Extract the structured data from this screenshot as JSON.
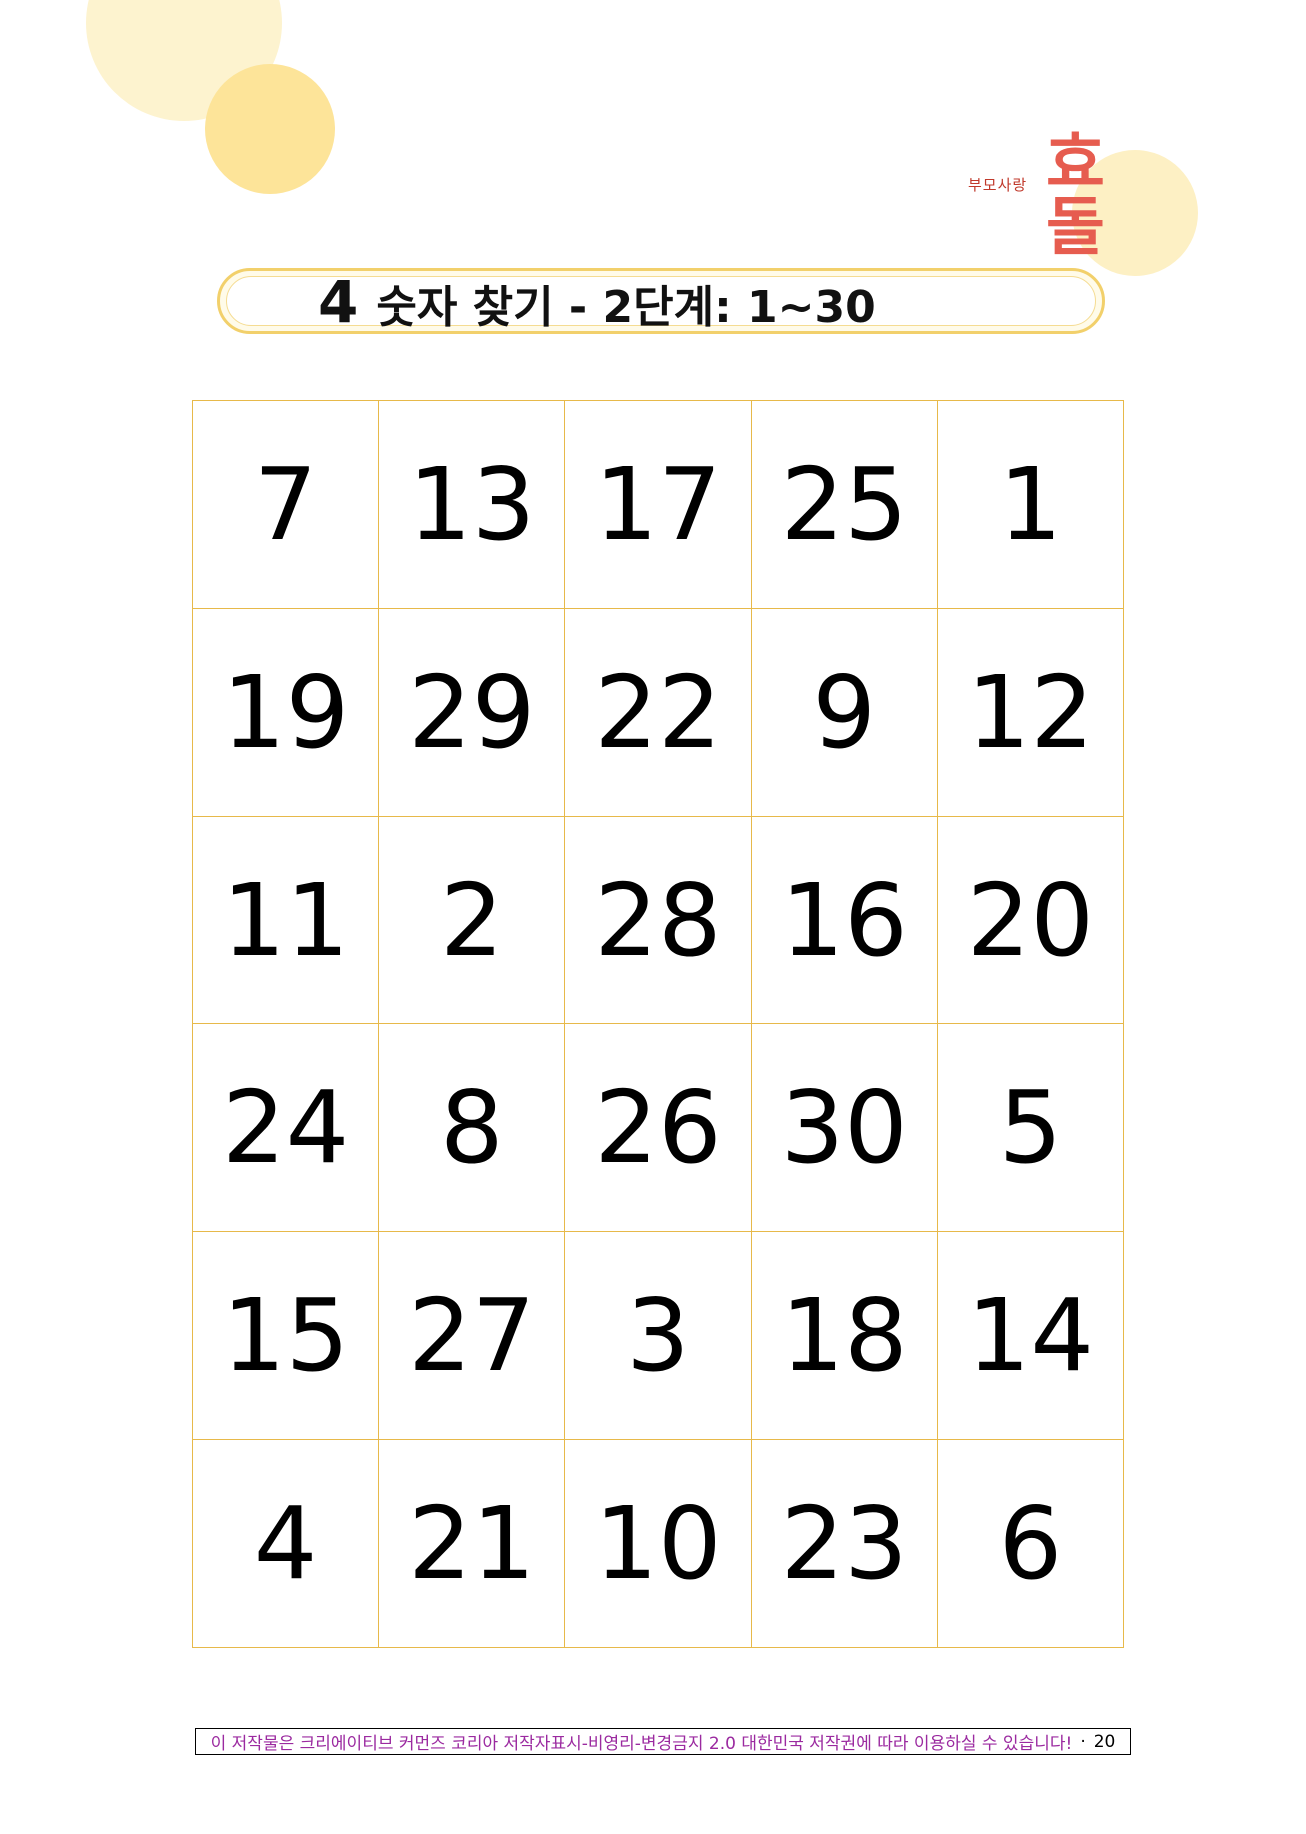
{
  "colors": {
    "circle_light": "#fdf3cf",
    "circle_mid": "#fde499",
    "grid_border": "#e7b94a",
    "title_border": "#f2d06b",
    "logo_accent": "#e65c4f",
    "footer_text": "#9b2aa0"
  },
  "logo": {
    "small_text": "부모사랑",
    "big_text": "효돌"
  },
  "title": {
    "number": "4",
    "text": "숫자 찾기 - 2단계: 1~30"
  },
  "grid": {
    "rows": [
      [
        "7",
        "13",
        "17",
        "25",
        "1"
      ],
      [
        "19",
        "29",
        "22",
        "9",
        "12"
      ],
      [
        "11",
        "2",
        "28",
        "16",
        "20"
      ],
      [
        "24",
        "8",
        "26",
        "30",
        "5"
      ],
      [
        "15",
        "27",
        "3",
        "18",
        "14"
      ],
      [
        "4",
        "21",
        "10",
        "23",
        "6"
      ]
    ]
  },
  "footer": {
    "notice": "이 저작물은 크리에이티브 커먼즈 코리아 저작자표시-비영리-변경금지 2.0 대한민국 저작권에 따라 이용하실 수 있습니다!",
    "separator": "·",
    "page": "20"
  }
}
